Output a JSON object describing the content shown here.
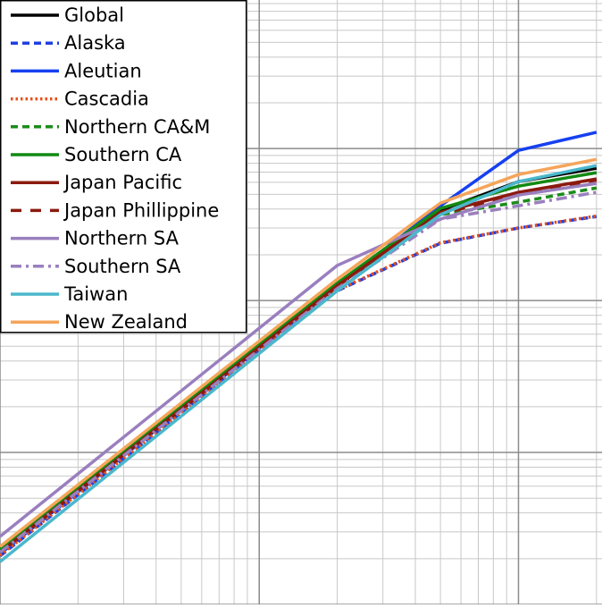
{
  "chart_data": {
    "type": "line",
    "log_x": true,
    "log_y": true,
    "grid": true,
    "legend": "upper left",
    "x": [
      1,
      20,
      50,
      100,
      200
    ],
    "xlim": [
      1,
      210
    ],
    "ylim": [
      0.001,
      9.5
    ],
    "xticks": [
      1,
      10,
      100
    ],
    "yticks": [
      0.001,
      0.01,
      0.1,
      1
    ],
    "series": [
      {
        "name": "Global",
        "color": "#000000",
        "style": "solid",
        "values": [
          0.00229,
          0.128,
          0.393,
          0.606,
          0.742
        ]
      },
      {
        "name": "Alaska",
        "color": "#1f3fe0",
        "style": "dashed",
        "values": [
          0.00208,
          0.116,
          0.238,
          0.3,
          0.357
        ]
      },
      {
        "name": "Aleutian",
        "color": "#1540f0",
        "style": "solid",
        "values": [
          0.00215,
          0.124,
          0.42,
          0.973,
          1.28
        ]
      },
      {
        "name": "Cascadia",
        "color": "#e8501a",
        "style": "dotted",
        "values": [
          0.0021,
          0.117,
          0.24,
          0.3,
          0.36
        ]
      },
      {
        "name": "Northern CA&M",
        "color": "#1a8c1a",
        "style": "dashed",
        "values": [
          0.0022,
          0.126,
          0.367,
          0.444,
          0.551
        ]
      },
      {
        "name": "Southern CA",
        "color": "#128a12",
        "style": "solid",
        "values": [
          0.0023,
          0.13,
          0.404,
          0.566,
          0.694
        ]
      },
      {
        "name": "Japan Pacific",
        "color": "#8b1a0e",
        "style": "solid",
        "values": [
          0.0022,
          0.125,
          0.38,
          0.515,
          0.631
        ]
      },
      {
        "name": "Japan Phillippine",
        "color": "#8b1a0e",
        "style": "longdash",
        "values": [
          0.0022,
          0.124,
          0.37,
          0.5,
          0.62
        ]
      },
      {
        "name": "Northern SA",
        "color": "#9a7fbf",
        "style": "solid",
        "values": [
          0.0028,
          0.17,
          0.343,
          0.494,
          0.59
        ]
      },
      {
        "name": "Southern SA",
        "color": "#9a7fbf",
        "style": "dashdot",
        "values": [
          0.0022,
          0.12,
          0.343,
          0.42,
          0.515
        ]
      },
      {
        "name": "Taiwan",
        "color": "#4ab8cc",
        "style": "solid",
        "values": [
          0.00191,
          0.116,
          0.367,
          0.606,
          0.773
        ]
      },
      {
        "name": "New Zealand",
        "color": "#f5a55a",
        "style": "solid",
        "values": [
          0.0024,
          0.138,
          0.438,
          0.675,
          0.85
        ]
      }
    ]
  }
}
